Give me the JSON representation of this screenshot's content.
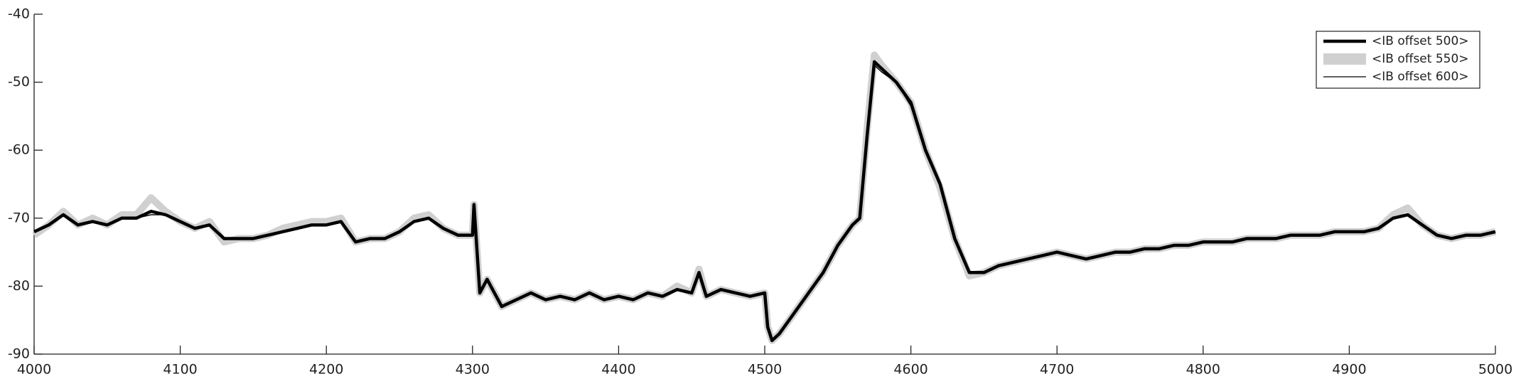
{
  "chart_data": {
    "type": "line",
    "x": [
      4000,
      4010,
      4020,
      4030,
      4040,
      4050,
      4060,
      4070,
      4080,
      4090,
      4100,
      4110,
      4120,
      4130,
      4140,
      4150,
      4160,
      4170,
      4180,
      4190,
      4200,
      4210,
      4220,
      4230,
      4240,
      4250,
      4260,
      4270,
      4280,
      4290,
      4300,
      4301,
      4305,
      4310,
      4320,
      4330,
      4340,
      4350,
      4360,
      4370,
      4380,
      4390,
      4400,
      4410,
      4420,
      4430,
      4440,
      4450,
      4455,
      4460,
      4470,
      4480,
      4490,
      4500,
      4502,
      4505,
      4510,
      4520,
      4530,
      4540,
      4550,
      4560,
      4565,
      4570,
      4575,
      4580,
      4590,
      4600,
      4610,
      4620,
      4630,
      4640,
      4650,
      4660,
      4670,
      4680,
      4690,
      4700,
      4710,
      4720,
      4730,
      4740,
      4750,
      4760,
      4770,
      4780,
      4790,
      4800,
      4810,
      4820,
      4830,
      4840,
      4850,
      4860,
      4870,
      4880,
      4890,
      4900,
      4910,
      4920,
      4930,
      4940,
      4950,
      4960,
      4970,
      4980,
      4990,
      5000
    ],
    "series": [
      {
        "name": "<IB offset 550>",
        "color": "#d0d0d0",
        "values": [
          -72.5,
          -71,
          -69,
          -71,
          -70,
          -71,
          -69.5,
          -69.5,
          -67,
          -69,
          -70.5,
          -71.5,
          -70.5,
          -73.5,
          -73,
          -73,
          -72.5,
          -71.5,
          -71,
          -70.5,
          -70.5,
          -70,
          -73.5,
          -73,
          -73,
          -72,
          -70,
          -69.5,
          -71.5,
          -72.5,
          -72.5,
          -68,
          -81,
          -79,
          -83,
          -82,
          -81,
          -82,
          -81.5,
          -82,
          -81,
          -82,
          -81.5,
          -82,
          -81,
          -81.5,
          -80,
          -81,
          -77.5,
          -81.5,
          -80.5,
          -81,
          -81.5,
          -81,
          -86,
          -88,
          -87,
          -84,
          -81,
          -78,
          -74,
          -71,
          -70,
          -57,
          -46,
          -47.5,
          -50,
          -53,
          -60,
          -65.5,
          -73,
          -78.5,
          -78,
          -77,
          -76.5,
          -76,
          -75.5,
          -75,
          -75.5,
          -76,
          -75.5,
          -75,
          -75,
          -74.5,
          -74.5,
          -74,
          -74,
          -73.5,
          -73.5,
          -73.5,
          -73,
          -73,
          -73,
          -72.5,
          -72.5,
          -72.5,
          -72,
          -72,
          -72,
          -71.5,
          -69.5,
          -68.5,
          -71,
          -72.5,
          -73,
          -72.5,
          -72.5,
          -72
        ]
      },
      {
        "name": "<IB offset 600>",
        "color": "#000000",
        "values": [
          -72,
          -71,
          -69.5,
          -71,
          -70.5,
          -71,
          -70,
          -70,
          -69.5,
          -69.5,
          -70.5,
          -71.5,
          -71,
          -73,
          -73,
          -73,
          -72.5,
          -72,
          -71.5,
          -71,
          -71,
          -70.5,
          -73.5,
          -73,
          -73,
          -72,
          -70.5,
          -70,
          -71.5,
          -72.5,
          -72.5,
          -68,
          -81,
          -79,
          -83,
          -82,
          -81,
          -82,
          -81.5,
          -82,
          -81,
          -82,
          -81.5,
          -82,
          -81,
          -81.5,
          -80.5,
          -81,
          -78,
          -81.5,
          -80.5,
          -81,
          -81.5,
          -81,
          -86,
          -88,
          -87,
          -84,
          -81,
          -78,
          -74,
          -71,
          -70,
          -58,
          -47.5,
          -48.5,
          -50,
          -53.5,
          -60,
          -65,
          -73,
          -78,
          -78,
          -77,
          -76.5,
          -76,
          -75.5,
          -75,
          -75.5,
          -76,
          -75.5,
          -75,
          -75,
          -74.5,
          -74.5,
          -74,
          -74,
          -73.5,
          -73.5,
          -73.5,
          -73,
          -73,
          -73,
          -72.5,
          -72.5,
          -72.5,
          -72,
          -72,
          -72,
          -71.5,
          -70,
          -69.5,
          -71,
          -72.5,
          -73,
          -72.5,
          -72.5,
          -72
        ]
      },
      {
        "name": "<IB offset 500>",
        "color": "#000000",
        "values": [
          -72,
          -71,
          -69.5,
          -71,
          -70.5,
          -71,
          -70,
          -70,
          -69,
          -69.5,
          -70.5,
          -71.5,
          -71,
          -73,
          -73,
          -73,
          -72.5,
          -72,
          -71.5,
          -71,
          -71,
          -70.5,
          -73.5,
          -73,
          -73,
          -72,
          -70.5,
          -70,
          -71.5,
          -72.5,
          -72.5,
          -68,
          -81,
          -79,
          -83,
          -82,
          -81,
          -82,
          -81.5,
          -82,
          -81,
          -82,
          -81.5,
          -82,
          -81,
          -81.5,
          -80.5,
          -81,
          -78,
          -81.5,
          -80.5,
          -81,
          -81.5,
          -81,
          -86,
          -88,
          -87,
          -84,
          -81,
          -78,
          -74,
          -71,
          -70,
          -58,
          -47,
          -48,
          -50,
          -53,
          -60,
          -65,
          -73,
          -78,
          -78,
          -77,
          -76.5,
          -76,
          -75.5,
          -75,
          -75.5,
          -76,
          -75.5,
          -75,
          -75,
          -74.5,
          -74.5,
          -74,
          -74,
          -73.5,
          -73.5,
          -73.5,
          -73,
          -73,
          -73,
          -72.5,
          -72.5,
          -72.5,
          -72,
          -72,
          -72,
          -71.5,
          -70,
          -69.5,
          -71,
          -72.5,
          -73,
          -72.5,
          -72.5,
          -72
        ]
      }
    ],
    "xlim": [
      4000,
      5000
    ],
    "ylim": [
      -90,
      -40
    ],
    "xticks": [
      4000,
      4100,
      4200,
      4300,
      4400,
      4500,
      4600,
      4700,
      4800,
      4900,
      5000
    ],
    "yticks": [
      -90,
      -80,
      -70,
      -60,
      -50,
      -40
    ],
    "legend": "upper right"
  }
}
